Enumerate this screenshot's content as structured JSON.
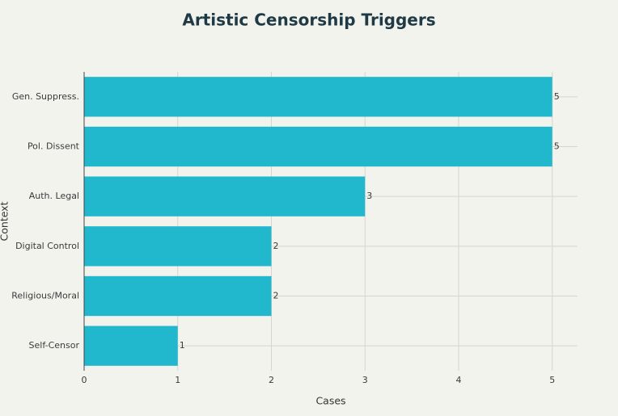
{
  "chart_data": {
    "type": "bar",
    "orientation": "horizontal",
    "title": "Artistic Censorship Triggers",
    "x_label": "Cases",
    "y_label": "Context",
    "categories": [
      "Gen. Suppress.",
      "Pol. Dissent",
      "Auth. Legal",
      "Digital Control",
      "Religious/Moral",
      "Self-Censor"
    ],
    "values": [
      5,
      5,
      3,
      2,
      2,
      1
    ],
    "color": "#21b8cd",
    "xlim": [
      0,
      5.27
    ],
    "xticks": [
      0,
      1,
      2,
      3,
      4,
      5
    ],
    "grid": true
  }
}
